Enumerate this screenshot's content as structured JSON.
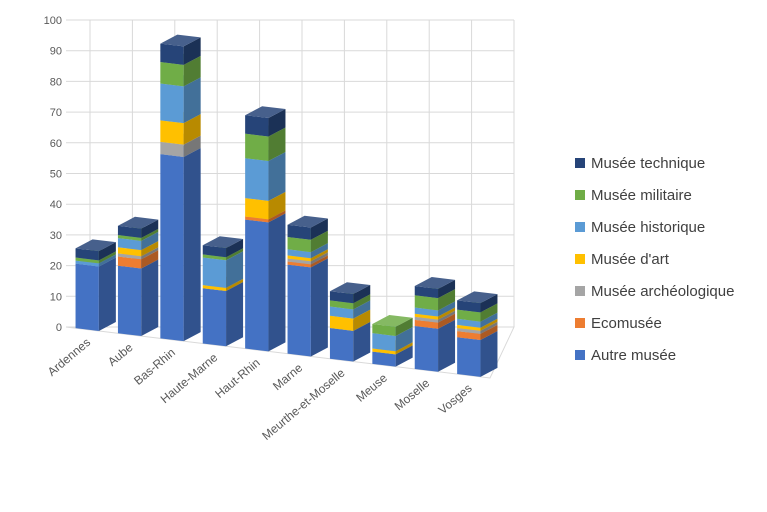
{
  "chart_data": {
    "type": "bar",
    "stacked": true,
    "three_d": true,
    "categories": [
      "Ardennes",
      "Aube",
      "Bas-Rhin",
      "Haute-Marne",
      "Haut-Rhin",
      "Marne",
      "Meurthe-et-Moselle",
      "Meuse",
      "Moselle",
      "Vosges"
    ],
    "ylim": [
      0,
      100
    ],
    "yticks": [
      "0",
      "10",
      "20",
      "30",
      "40",
      "50",
      "60",
      "70",
      "80",
      "90",
      "100"
    ],
    "legend_position": "right",
    "grid": true,
    "series": [
      {
        "name": "Autre musée",
        "color": "#4472C4",
        "values": [
          21,
          22,
          60,
          18,
          42,
          29,
          10,
          4,
          14,
          12
        ]
      },
      {
        "name": "Ecomusée",
        "color": "#ED7D31",
        "values": [
          0,
          3,
          0,
          0,
          1,
          1,
          0,
          0,
          2,
          2
        ]
      },
      {
        "name": "Musée archéologique",
        "color": "#A5A5A5",
        "values": [
          0,
          1,
          4,
          0,
          0,
          1,
          0,
          0,
          1,
          1
        ]
      },
      {
        "name": "Musée d'art",
        "color": "#FFC000",
        "values": [
          0,
          2,
          7,
          1,
          6,
          1,
          4,
          1,
          1,
          1
        ]
      },
      {
        "name": "Musée historique",
        "color": "#5B9BD5",
        "values": [
          1,
          3,
          12,
          9,
          13,
          2,
          3,
          5,
          2,
          2
        ]
      },
      {
        "name": "Musée militaire",
        "color": "#70AD47",
        "values": [
          1,
          1,
          7,
          1,
          8,
          4,
          2,
          3,
          4,
          3
        ]
      },
      {
        "name": "Musée technique",
        "color": "#264478",
        "values": [
          3,
          3,
          6,
          3,
          6,
          4,
          3,
          0,
          3,
          3
        ]
      }
    ]
  }
}
